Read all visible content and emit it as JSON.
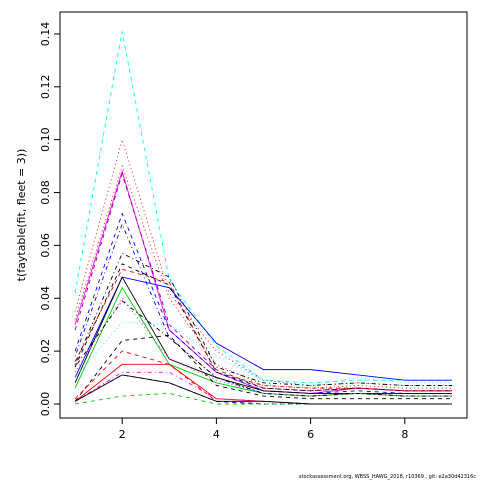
{
  "chart_data": {
    "type": "line",
    "y_label": "t(faytable(fit, fleet = 3))",
    "footer": "stockassessment.org, WBSS_HAWG_2018, r10369 , git: e2a30d42316c",
    "x": [
      1,
      2,
      3,
      4,
      5,
      6,
      7,
      8,
      9
    ],
    "xlim": [
      0.68,
      9.32
    ],
    "xticks": [
      2,
      4,
      6,
      8
    ],
    "ylim": [
      -0.0053,
      0.1483
    ],
    "yticks": [
      {
        "value": 0,
        "label": "0.00"
      },
      {
        "value": 0.02,
        "label": "0.02"
      },
      {
        "value": 0.04,
        "label": "0.04"
      },
      {
        "value": 0.06,
        "label": "0.06"
      },
      {
        "value": 0.08,
        "label": "0.08"
      },
      {
        "value": 0.1,
        "label": "0.10"
      },
      {
        "value": 0.12,
        "label": "0.12"
      },
      {
        "value": 0.14,
        "label": "0.14"
      }
    ],
    "series": [
      {
        "color": "#00ffff",
        "dash": "dashed",
        "values": [
          0.042,
          0.141,
          0.047,
          0.022,
          0.009,
          0.008,
          0.009,
          0.009,
          0.009
        ]
      },
      {
        "color": "#ff0000",
        "dash": "dotted",
        "values": [
          0.035,
          0.1,
          0.042,
          0.02,
          0.009,
          0.007,
          0.008,
          0.007,
          0.007
        ]
      },
      {
        "color": "#ff0000",
        "dash": "dotted",
        "values": [
          0.032,
          0.09,
          0.04,
          0.015,
          0.007,
          0.006,
          0.007,
          0.006,
          0.006
        ]
      },
      {
        "color": "#ff00ff",
        "dash": "solid",
        "values": [
          0.03,
          0.088,
          0.028,
          0.012,
          0.005,
          0.004,
          0.006,
          0.005,
          0.005
        ]
      },
      {
        "color": "#8b008b",
        "dash": "dashed",
        "values": [
          0.028,
          0.087,
          0.03,
          0.013,
          0.006,
          0.005,
          0.006,
          0.005,
          0.005
        ]
      },
      {
        "color": "#0000ff",
        "dash": "dashed",
        "values": [
          0.02,
          0.072,
          0.028,
          0.012,
          0.005,
          0.004,
          0.005,
          0.004,
          0.004
        ]
      },
      {
        "color": "#0000ff",
        "dash": "dotdash",
        "values": [
          0.018,
          0.068,
          0.025,
          0.01,
          0.004,
          0.003,
          0.004,
          0.003,
          0.003
        ]
      },
      {
        "color": "#000000",
        "dash": "dotdash",
        "values": [
          0.015,
          0.057,
          0.048,
          0.014,
          0.008,
          0.007,
          0.008,
          0.007,
          0.007
        ]
      },
      {
        "color": "#000000",
        "dash": "dashed",
        "values": [
          0.014,
          0.053,
          0.045,
          0.012,
          0.006,
          0.005,
          0.006,
          0.005,
          0.005
        ]
      },
      {
        "color": "#ff0000",
        "dash": "dashed",
        "values": [
          0.016,
          0.051,
          0.046,
          0.012,
          0.007,
          0.006,
          0.006,
          0.005,
          0.005
        ]
      },
      {
        "color": "#0000ff",
        "dash": "solid",
        "values": [
          0.01,
          0.048,
          0.044,
          0.023,
          0.013,
          0.013,
          0.011,
          0.009,
          0.009
        ]
      },
      {
        "color": "#000000",
        "dash": "solid",
        "values": [
          0.008,
          0.048,
          0.017,
          0.01,
          0.005,
          0.004,
          0.004,
          0.004,
          0.004
        ]
      },
      {
        "color": "#00cd00",
        "dash": "solid",
        "values": [
          0.006,
          0.044,
          0.015,
          0.008,
          0.004,
          0.003,
          0.004,
          0.003,
          0.003
        ]
      },
      {
        "color": "#ff00ff",
        "dash": "dotted",
        "values": [
          0.012,
          0.04,
          0.017,
          0.009,
          0.004,
          0.003,
          0.004,
          0.003,
          0.003
        ]
      },
      {
        "color": "#000000",
        "dash": "dotdash",
        "values": [
          0.014,
          0.039,
          0.025,
          0.01,
          0.004,
          0.003,
          0.004,
          0.003,
          0.003
        ]
      },
      {
        "color": "#00ffff",
        "dash": "dotted",
        "values": [
          0.01,
          0.031,
          0.03,
          0.018,
          0.009,
          0.007,
          0.01,
          0.008,
          0.008
        ]
      },
      {
        "color": "#000000",
        "dash": "dashed",
        "values": [
          0.001,
          0.024,
          0.026,
          0.007,
          0.003,
          0.002,
          0.002,
          0.002,
          0.002
        ]
      },
      {
        "color": "#ff0000",
        "dash": "solid",
        "values": [
          0.001,
          0.015,
          0.015,
          0.002,
          0.001,
          0.0,
          0.0,
          0.0,
          0.0
        ]
      },
      {
        "color": "#ff0000",
        "dash": "dashed",
        "values": [
          0.002,
          0.02,
          0.015,
          0.001,
          0.0,
          0.0,
          0.0,
          0.0,
          0.0
        ]
      },
      {
        "color": "#0000ff",
        "dash": "dashed",
        "values": [
          0.001,
          0.011,
          0.008,
          0.001,
          0.0,
          0.0,
          0.0,
          0.0,
          0.0
        ]
      },
      {
        "color": "#ff00ff",
        "dash": "dotdash",
        "values": [
          0.001,
          0.012,
          0.012,
          0.002,
          0.001,
          0.0,
          0.0,
          0.0,
          0.0
        ]
      },
      {
        "color": "#00cd00",
        "dash": "dashed",
        "values": [
          0.0,
          0.003,
          0.004,
          0.0,
          0.0,
          0.0,
          0.0,
          0.0,
          0.0
        ]
      },
      {
        "color": "#000000",
        "dash": "solid",
        "values": [
          0.001,
          0.011,
          0.008,
          0.001,
          0.001,
          0.0,
          0.0,
          0.0,
          0.0
        ]
      }
    ]
  }
}
